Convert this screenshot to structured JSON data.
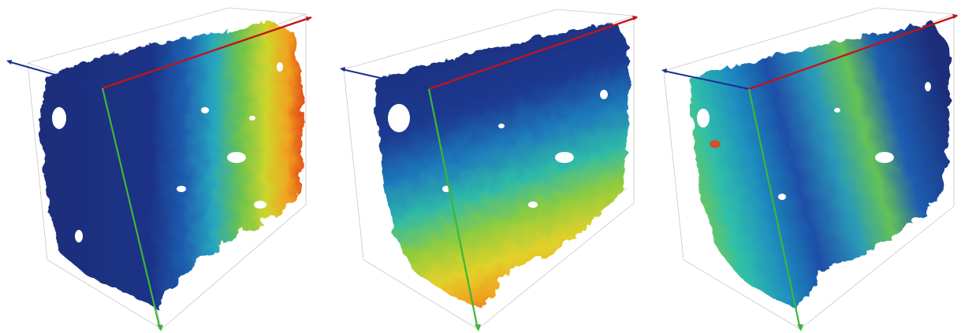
{
  "figure": {
    "panels": [
      {
        "id": "left",
        "colormap": [
          "#1d2d7a",
          "#1f4fa8",
          "#1f8fbf",
          "#2fbfa9",
          "#7bc84a",
          "#d3d62a",
          "#f0a81e",
          "#e3461a"
        ],
        "gradient_direction": "left-to-right"
      },
      {
        "id": "middle",
        "colormap": [
          "#1d2d7a",
          "#1f4fa8",
          "#1f8fbf",
          "#2fbfa9",
          "#7bc84a",
          "#d3d62a",
          "#f0a81e",
          "#e3461a"
        ],
        "gradient_direction": "top-to-bottom"
      },
      {
        "id": "right",
        "colormap": [
          "#1d2d7a",
          "#1f4fa8",
          "#1f8fbf",
          "#2fbfa9",
          "#7bc84a",
          "#d3d62a",
          "#f0a81e",
          "#e3461a"
        ],
        "gradient_direction": "diagonal"
      }
    ],
    "axis_colors": {
      "x_axis": "#c0141a",
      "y_axis": "#1b2f8c",
      "z_axis": "#3fb53a"
    },
    "bounding_box_color": "#c8c8c8"
  }
}
